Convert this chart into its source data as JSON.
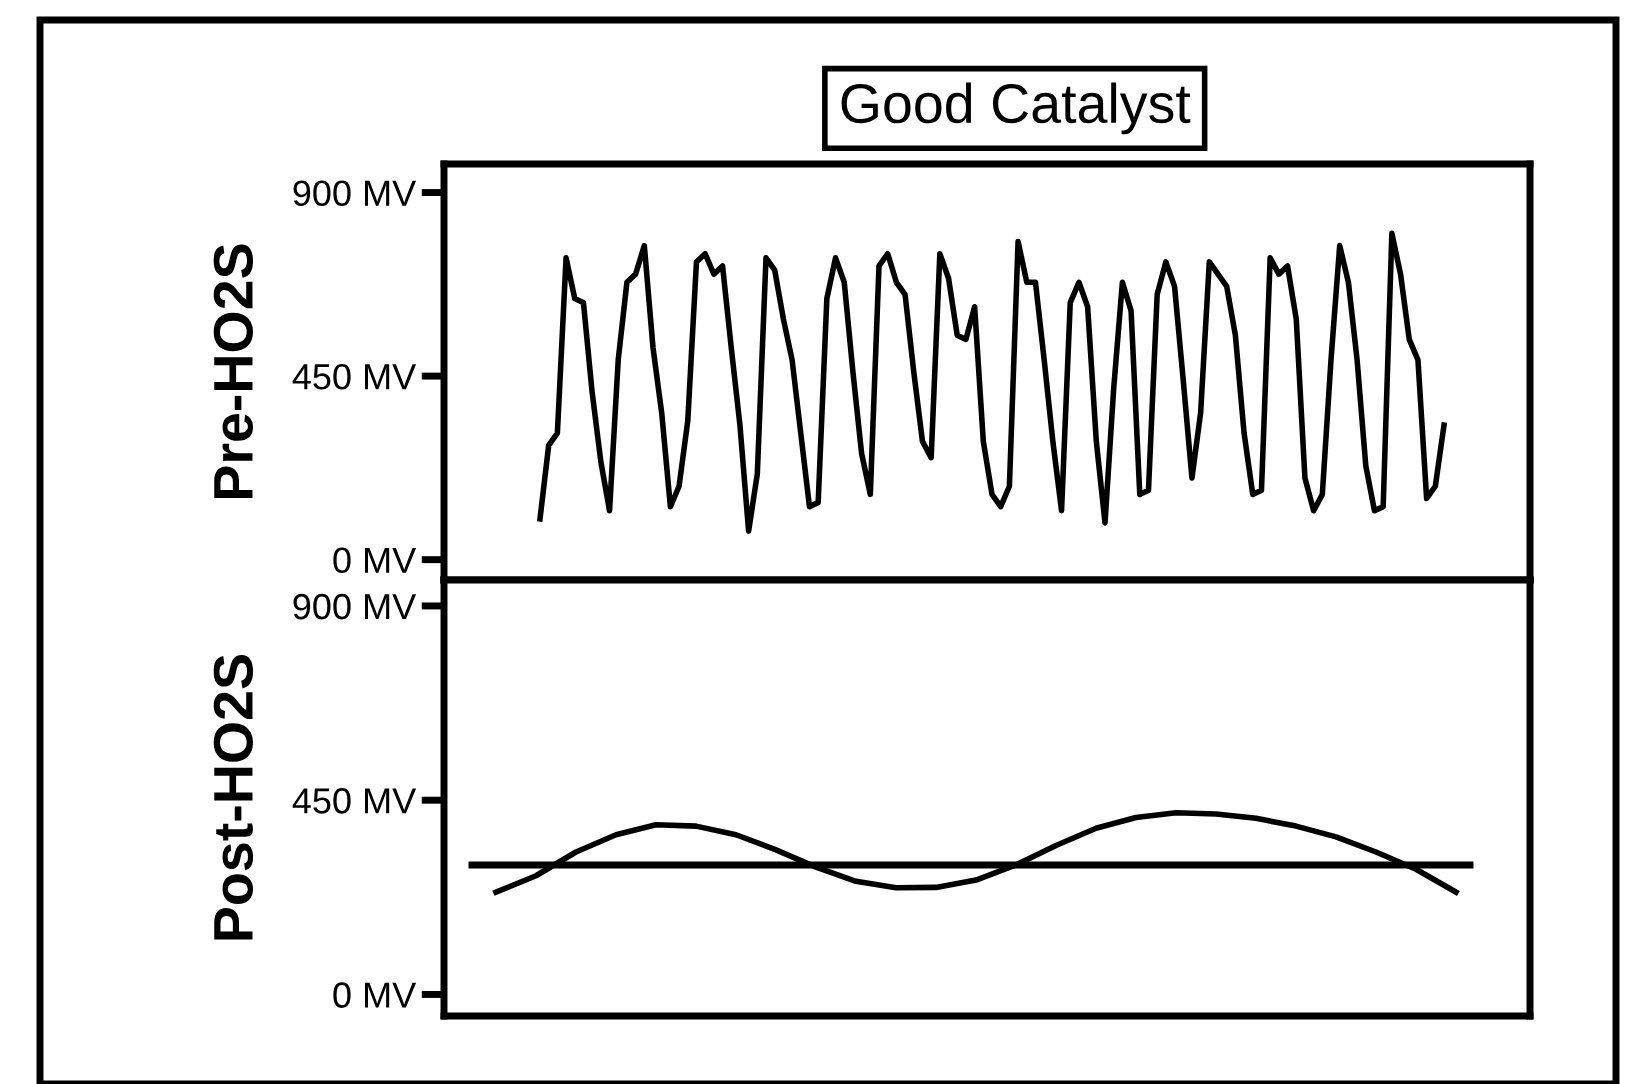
{
  "chart_data": [
    {
      "type": "line",
      "title": "Good Catalyst",
      "ylabel": "Pre-HO2S",
      "categories": [
        null,
        null,
        null,
        null,
        null,
        null,
        null,
        null,
        null,
        null,
        null,
        null,
        null,
        null,
        null,
        null,
        null,
        null,
        null,
        null,
        null,
        null,
        null,
        null,
        null,
        null,
        null,
        null,
        null,
        null,
        null,
        null,
        null,
        null,
        null,
        null,
        null,
        null,
        null,
        null,
        null,
        null,
        null,
        null,
        null,
        null,
        null,
        null,
        null,
        null,
        null,
        null,
        null,
        null,
        null,
        null,
        null,
        null,
        null,
        null,
        null,
        null,
        null,
        null,
        null,
        null,
        null,
        null,
        null,
        null,
        null,
        null,
        null,
        null,
        null,
        null,
        null,
        null,
        null,
        null,
        null,
        null,
        null,
        null,
        null,
        null,
        null,
        null,
        null,
        null,
        null,
        null,
        null,
        null,
        null,
        null,
        null,
        null,
        null,
        null,
        null,
        null,
        null,
        null,
        null
      ],
      "series": [
        {
          "color": "#000000",
          "values": [
            100,
            280,
            310,
            740,
            640,
            630,
            410,
            240,
            120,
            490,
            680,
            700,
            770,
            520,
            360,
            130,
            180,
            340,
            730,
            750,
            700,
            720,
            520,
            330,
            70,
            210,
            740,
            710,
            590,
            490,
            310,
            130,
            140,
            640,
            740,
            680,
            460,
            260,
            160,
            720,
            750,
            680,
            650,
            460,
            290,
            250,
            750,
            690,
            550,
            540,
            620,
            290,
            160,
            130,
            180,
            780,
            680,
            680,
            490,
            290,
            120,
            630,
            680,
            620,
            290,
            90,
            420,
            680,
            610,
            160,
            170,
            650,
            730,
            670,
            440,
            200,
            360,
            730,
            700,
            670,
            550,
            310,
            160,
            170,
            740,
            700,
            720,
            590,
            200,
            120,
            160,
            490,
            770,
            680,
            490,
            230,
            120,
            130,
            800,
            700,
            540,
            490,
            150,
            180,
            330
          ]
        }
      ],
      "ylim": [
        -50,
        970
      ],
      "yticks": [
        {
          "value": 0,
          "label": "0 MV"
        },
        {
          "value": 450,
          "label": "450 MV"
        },
        {
          "value": 900,
          "label": "900 MV"
        }
      ],
      "tick_labels": "y",
      "grid": false,
      "legend": false
    },
    {
      "type": "line",
      "ylabel": "Post-HO2S",
      "categories": [
        null,
        null,
        null,
        null,
        null,
        null,
        null,
        null,
        null,
        null,
        null,
        null,
        null,
        null,
        null,
        null,
        null,
        null,
        null,
        null,
        null,
        null,
        null,
        null,
        null
      ],
      "series": [
        {
          "color": "#000000",
          "values": [
            237,
            275,
            330,
            370,
            393,
            390,
            370,
            335,
            295,
            262,
            247,
            248,
            265,
            300,
            345,
            385,
            410,
            421,
            418,
            408,
            390,
            365,
            330,
            290,
            237
          ]
        }
      ],
      "ref_lines": [
        {
          "axis": "y",
          "value": 300,
          "color": "#000000"
        }
      ],
      "ylim": [
        -50,
        960
      ],
      "yticks": [
        {
          "value": 0,
          "label": "0 MV"
        },
        {
          "value": 450,
          "label": "450 MV"
        },
        {
          "value": 900,
          "label": "900 MV"
        }
      ],
      "tick_labels": "y",
      "grid": false,
      "legend": false
    }
  ]
}
